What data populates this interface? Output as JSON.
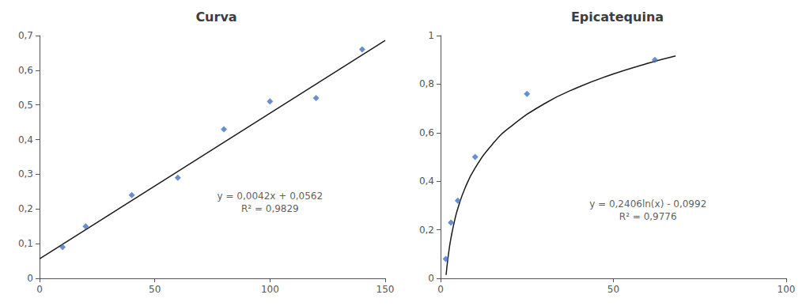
{
  "chart_data": [
    {
      "type": "scatter",
      "title": "Curva",
      "xlim": [
        0,
        150
      ],
      "xticks": [
        0,
        50,
        100,
        150
      ],
      "ylim": [
        0,
        0.7
      ],
      "yticks": [
        0,
        {
          "value": 0.1,
          "label": "0,1"
        },
        {
          "value": 0.2,
          "label": "0,2"
        },
        {
          "value": 0.3,
          "label": "0,3"
        },
        {
          "value": 0.4,
          "label": "0,4"
        },
        {
          "value": 0.5,
          "label": "0,5"
        },
        {
          "value": 0.6,
          "label": "0,6"
        },
        {
          "value": 0.7,
          "label": "0,7"
        }
      ],
      "grid": false,
      "series": [
        {
          "type": "scatter",
          "color": "#4472C4",
          "marker": "diamond",
          "x": [
            10,
            20,
            40,
            60,
            80,
            100,
            120,
            140
          ],
          "values": [
            0.09,
            0.15,
            0.24,
            0.29,
            0.43,
            0.51,
            0.52,
            0.66
          ]
        },
        {
          "type": "line",
          "color": "#1a1a1a",
          "line_style": "solid",
          "x": [
            0,
            150
          ],
          "values": [
            0.0562,
            0.6862
          ]
        }
      ],
      "annotations": [
        {
          "text": "y = 0,0042x + 0,0562\nR² = 0,9829",
          "x": 100,
          "y": 0.22
        }
      ]
    },
    {
      "type": "scatter",
      "title": "Epicatequina",
      "xlim": [
        0,
        100
      ],
      "xticks": [
        0,
        50,
        100
      ],
      "ylim": [
        0,
        1.0
      ],
      "yticks": [
        0,
        {
          "value": 0.2,
          "label": "0,2"
        },
        {
          "value": 0.4,
          "label": "0,4"
        },
        {
          "value": 0.6,
          "label": "0,6"
        },
        {
          "value": 0.8,
          "label": "0,8"
        },
        1
      ],
      "grid": false,
      "series": [
        {
          "type": "scatter",
          "color": "#4472C4",
          "marker": "diamond",
          "x": [
            1.5,
            3,
            5,
            10,
            25,
            62
          ],
          "values": [
            0.08,
            0.23,
            0.32,
            0.5,
            0.76,
            0.9
          ]
        },
        {
          "type": "line",
          "color": "#1a1a1a",
          "line_style": "solid",
          "x": [
            1.6,
            2,
            2.5,
            3,
            4,
            5,
            7,
            10,
            15,
            20,
            30,
            40,
            50,
            60,
            68
          ],
          "values": [
            0.0139,
            0.0676,
            0.1213,
            0.1651,
            0.2343,
            0.288,
            0.369,
            0.4548,
            0.5524,
            0.6216,
            0.7191,
            0.7883,
            0.842,
            0.8859,
            0.916
          ]
        }
      ],
      "annotations": [
        {
          "text": "y = 0,2406ln(x) - 0,0992\nR² = 0,9776",
          "x": 60,
          "y": 0.28
        }
      ]
    }
  ]
}
